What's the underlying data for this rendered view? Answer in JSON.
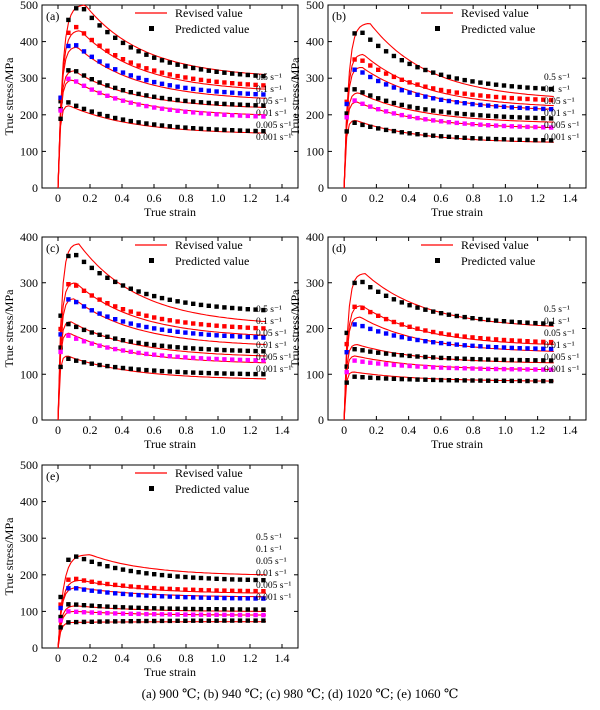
{
  "caption": "(a)  900  ℃;  (b)   940  ℃; (c) 980  ℃; (d) 1020  ℃; (e) 1060  ℃",
  "colors": {
    "revised": "#ff0000",
    "predicted": "#000000",
    "series_markers": [
      "#000000",
      "#ff0000",
      "#0000ff",
      "#000000",
      "#ff00ff",
      "#000000"
    ]
  },
  "legend": {
    "revised_label": "Revised value",
    "predicted_label": "Predicted value",
    "position": "top-right"
  },
  "chart_data": [
    {
      "type": "line",
      "panel": "(a)",
      "xlabel": "True strain",
      "ylabel": "True stress/MPa",
      "xlim": [
        -0.1,
        1.5
      ],
      "ylim": [
        0,
        500
      ],
      "xticks": [
        "0",
        "0.2",
        "0.4",
        "0.6",
        "0.8",
        "1.0",
        "1.2",
        "1.4"
      ],
      "yticks": [
        "0",
        "100",
        "200",
        "300",
        "400",
        "500"
      ],
      "series": [
        {
          "name": "0.5 s⁻¹",
          "revised": {
            "peak_strain": 0.17,
            "peak": 500,
            "final": 310
          },
          "predicted": {
            "peak_strain": 0.15,
            "peak": 495,
            "final": 305
          }
        },
        {
          "name": "0.1 s⁻¹",
          "revised": {
            "peak_strain": 0.14,
            "peak": 430,
            "final": 270
          },
          "predicted": {
            "peak_strain": 0.12,
            "peak": 440,
            "final": 280
          }
        },
        {
          "name": "0.05 s⁻¹",
          "revised": {
            "peak_strain": 0.12,
            "peak": 385,
            "final": 245
          },
          "predicted": {
            "peak_strain": 0.1,
            "peak": 395,
            "final": 255
          }
        },
        {
          "name": "0.01 s⁻¹",
          "revised": {
            "peak_strain": 0.1,
            "peak": 320,
            "final": 220
          },
          "predicted": {
            "peak_strain": 0.09,
            "peak": 325,
            "final": 225
          }
        },
        {
          "name": "0.005 s⁻¹",
          "revised": {
            "peak_strain": 0.09,
            "peak": 295,
            "final": 200
          },
          "predicted": {
            "peak_strain": 0.08,
            "peak": 300,
            "final": 195
          }
        },
        {
          "name": "0.001 s⁻¹",
          "revised": {
            "peak_strain": 0.07,
            "peak": 225,
            "final": 150
          },
          "predicted": {
            "peak_strain": 0.06,
            "peak": 235,
            "final": 155
          }
        }
      ]
    },
    {
      "type": "line",
      "panel": "(b)",
      "xlabel": "True strain",
      "ylabel": "True stress/MPa",
      "xlim": [
        -0.1,
        1.5
      ],
      "ylim": [
        0,
        500
      ],
      "xticks": [
        "0",
        "0.2",
        "0.4",
        "0.6",
        "0.8",
        "1.0",
        "1.2",
        "1.4"
      ],
      "yticks": [
        "0",
        "100",
        "200",
        "300",
        "400",
        "500"
      ],
      "series": [
        {
          "name": "0.5 s⁻¹",
          "revised": {
            "peak_strain": 0.16,
            "peak": 450,
            "final": 250
          },
          "predicted": {
            "peak_strain": 0.1,
            "peak": 430,
            "final": 270
          }
        },
        {
          "name": "0.1 s⁻¹",
          "revised": {
            "peak_strain": 0.12,
            "peak": 365,
            "final": 225
          },
          "predicted": {
            "peak_strain": 0.09,
            "peak": 355,
            "final": 240
          }
        },
        {
          "name": "0.05 s⁻¹",
          "revised": {
            "peak_strain": 0.11,
            "peak": 330,
            "final": 215
          },
          "predicted": {
            "peak_strain": 0.08,
            "peak": 325,
            "final": 215
          }
        },
        {
          "name": "0.01 s⁻¹",
          "revised": {
            "peak_strain": 0.09,
            "peak": 260,
            "final": 180
          },
          "predicted": {
            "peak_strain": 0.07,
            "peak": 270,
            "final": 190
          }
        },
        {
          "name": "0.005 s⁻¹",
          "revised": {
            "peak_strain": 0.08,
            "peak": 235,
            "final": 165
          },
          "predicted": {
            "peak_strain": 0.06,
            "peak": 240,
            "final": 165
          }
        },
        {
          "name": "0.001 s⁻¹",
          "revised": {
            "peak_strain": 0.07,
            "peak": 185,
            "final": 125
          },
          "predicted": {
            "peak_strain": 0.05,
            "peak": 180,
            "final": 130
          }
        }
      ]
    },
    {
      "type": "line",
      "panel": "(c)",
      "xlabel": "True strain",
      "ylabel": "True stress/MPa",
      "xlim": [
        -0.1,
        1.5
      ],
      "ylim": [
        0,
        400
      ],
      "xticks": [
        "0",
        "0.2",
        "0.4",
        "0.6",
        "0.8",
        "1.0",
        "1.2",
        "1.4"
      ],
      "yticks": [
        "0",
        "100",
        "200",
        "300",
        "400"
      ],
      "series": [
        {
          "name": "0.5 s⁻¹",
          "revised": {
            "peak_strain": 0.13,
            "peak": 385,
            "final": 215
          },
          "predicted": {
            "peak_strain": 0.1,
            "peak": 365,
            "final": 240
          }
        },
        {
          "name": "0.1 s⁻¹",
          "revised": {
            "peak_strain": 0.11,
            "peak": 300,
            "final": 185
          },
          "predicted": {
            "peak_strain": 0.09,
            "peak": 300,
            "final": 200
          }
        },
        {
          "name": "0.05 s⁻¹",
          "revised": {
            "peak_strain": 0.1,
            "peak": 265,
            "final": 165
          },
          "predicted": {
            "peak_strain": 0.08,
            "peak": 265,
            "final": 180
          }
        },
        {
          "name": "0.01 s⁻¹",
          "revised": {
            "peak_strain": 0.08,
            "peak": 215,
            "final": 140
          },
          "predicted": {
            "peak_strain": 0.07,
            "peak": 210,
            "final": 150
          }
        },
        {
          "name": "0.005 s⁻¹",
          "revised": {
            "peak_strain": 0.07,
            "peak": 190,
            "final": 125
          },
          "predicted": {
            "peak_strain": 0.06,
            "peak": 185,
            "final": 130
          }
        },
        {
          "name": "0.001 s⁻¹",
          "revised": {
            "peak_strain": 0.06,
            "peak": 140,
            "final": 90
          },
          "predicted": {
            "peak_strain": 0.05,
            "peak": 135,
            "final": 100
          }
        }
      ]
    },
    {
      "type": "line",
      "panel": "(d)",
      "xlabel": "True strain",
      "ylabel": "True stress/MPa",
      "xlim": [
        -0.1,
        1.5
      ],
      "ylim": [
        0,
        400
      ],
      "xticks": [
        "0",
        "0.2",
        "0.4",
        "0.6",
        "0.8",
        "1.0",
        "1.2",
        "1.4"
      ],
      "yticks": [
        "0",
        "100",
        "200",
        "300",
        "400"
      ],
      "series": [
        {
          "name": "0.5 s⁻¹",
          "revised": {
            "peak_strain": 0.13,
            "peak": 320,
            "final": 205
          },
          "predicted": {
            "peak_strain": 0.1,
            "peak": 305,
            "final": 210
          }
        },
        {
          "name": "0.1 s⁻¹",
          "revised": {
            "peak_strain": 0.11,
            "peak": 250,
            "final": 165
          },
          "predicted": {
            "peak_strain": 0.09,
            "peak": 250,
            "final": 170
          }
        },
        {
          "name": "0.05 s⁻¹",
          "revised": {
            "peak_strain": 0.1,
            "peak": 225,
            "final": 150
          },
          "predicted": {
            "peak_strain": 0.08,
            "peak": 210,
            "final": 155
          }
        },
        {
          "name": "0.01 s⁻¹",
          "revised": {
            "peak_strain": 0.08,
            "peak": 165,
            "final": 125
          },
          "predicted": {
            "peak_strain": 0.07,
            "peak": 155,
            "final": 130
          }
        },
        {
          "name": "0.005 s⁻¹",
          "revised": {
            "peak_strain": 0.07,
            "peak": 140,
            "final": 110
          },
          "predicted": {
            "peak_strain": 0.06,
            "peak": 130,
            "final": 110
          }
        },
        {
          "name": "0.001 s⁻¹",
          "revised": {
            "peak_strain": 0.06,
            "peak": 105,
            "final": 85
          },
          "predicted": {
            "peak_strain": 0.05,
            "peak": 95,
            "final": 85
          }
        }
      ]
    },
    {
      "type": "line",
      "panel": "(e)",
      "xlabel": "True strain",
      "ylabel": "True stress/MPa",
      "xlim": [
        -0.1,
        1.5
      ],
      "ylim": [
        0,
        500
      ],
      "xticks": [
        "0",
        "0.2",
        "0.4",
        "0.6",
        "0.8",
        "1.0",
        "1.2",
        "1.4"
      ],
      "yticks": [
        "0",
        "100",
        "200",
        "300",
        "400",
        "500"
      ],
      "series": [
        {
          "name": "0.5 s⁻¹",
          "revised": {
            "peak_strain": 0.2,
            "peak": 255,
            "final": 200
          },
          "predicted": {
            "peak_strain": 0.12,
            "peak": 250,
            "final": 185
          }
        },
        {
          "name": "0.1 s⁻¹",
          "revised": {
            "peak_strain": 0.15,
            "peak": 185,
            "final": 150
          },
          "predicted": {
            "peak_strain": 0.1,
            "peak": 190,
            "final": 155
          }
        },
        {
          "name": "0.05 s⁻¹",
          "revised": {
            "peak_strain": 0.13,
            "peak": 165,
            "final": 140
          },
          "predicted": {
            "peak_strain": 0.09,
            "peak": 165,
            "final": 135
          }
        },
        {
          "name": "0.01 s⁻¹",
          "revised": {
            "peak_strain": 0.12,
            "peak": 115,
            "final": 100
          },
          "predicted": {
            "peak_strain": 0.08,
            "peak": 120,
            "final": 105
          }
        },
        {
          "name": "0.005 s⁻¹",
          "revised": {
            "peak_strain": 0.11,
            "peak": 100,
            "final": 90
          },
          "predicted": {
            "peak_strain": 0.07,
            "peak": 100,
            "final": 90
          }
        },
        {
          "name": "0.001 s⁻¹",
          "revised": {
            "peak_strain": 0.1,
            "peak": 70,
            "final": 72
          },
          "predicted": {
            "peak_strain": 0.06,
            "peak": 70,
            "final": 75
          }
        }
      ]
    }
  ]
}
